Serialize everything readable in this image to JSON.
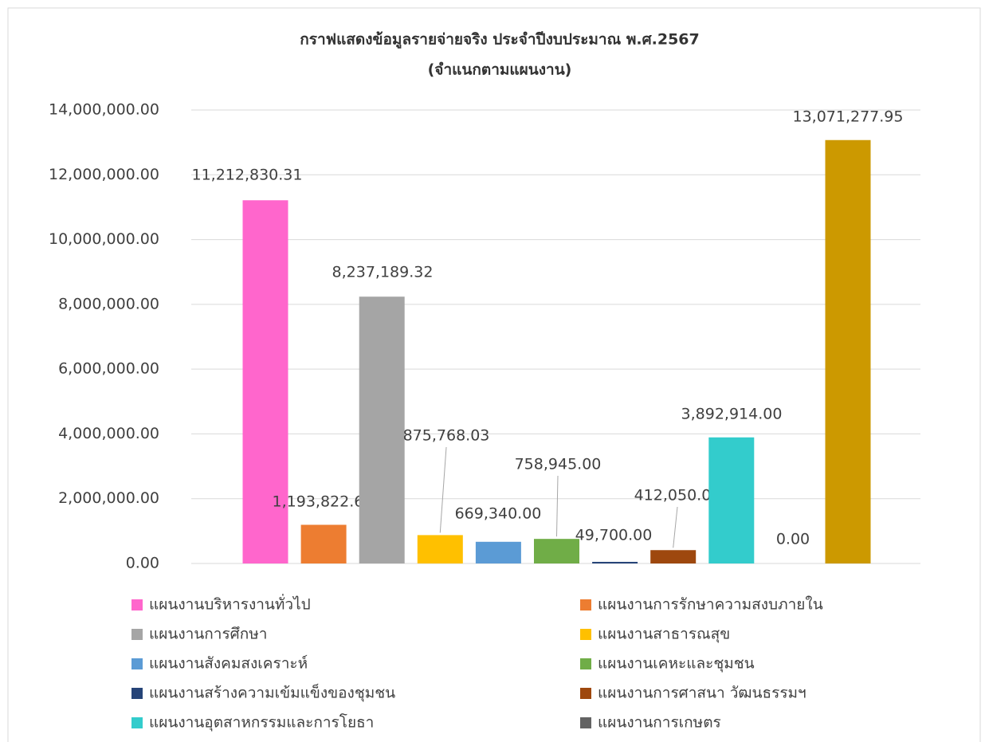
{
  "chart_data": {
    "type": "bar",
    "title": "กราฟแสดงข้อมูลรายจ่ายจริง ประจำปีงบประมาณ พ.ศ.2567",
    "subtitle": "(จำแนกตามแผนงาน)",
    "series": [
      {
        "name": "แผนงานบริหารงานทั่วไป",
        "color": "#ff66cc",
        "values": [
          11212830.31
        ],
        "value_labels": [
          "11,212,830.31"
        ]
      },
      {
        "name": "แผนงานการรักษาความสงบภายใน",
        "color": "#ed7d31",
        "values": [
          1193822.66
        ],
        "value_labels": [
          "1,193,822.66"
        ]
      },
      {
        "name": "แผนงานการศึกษา",
        "color": "#a5a5a5",
        "values": [
          8237189.32
        ],
        "value_labels": [
          "8,237,189.32"
        ]
      },
      {
        "name": "แผนงานสาธารณสุข",
        "color": "#ffc000",
        "values": [
          875768.03
        ],
        "value_labels": [
          "875,768.03"
        ]
      },
      {
        "name": "แผนงานสังคมสงเคราะห์",
        "color": "#5b9bd5",
        "values": [
          669340
        ],
        "value_labels": [
          "669,340.00"
        ]
      },
      {
        "name": "แผนงานเคหะและชุมชน",
        "color": "#70ad47",
        "values": [
          758945
        ],
        "value_labels": [
          "758,945.00"
        ]
      },
      {
        "name": "แผนงานสร้างความเข้มแข็งของชุมชน",
        "color": "#264478",
        "values": [
          49700
        ],
        "value_labels": [
          "49,700.00"
        ]
      },
      {
        "name": "แผนงานการศาสนา วัฒนธรรมฯ",
        "color": "#9e480e",
        "values": [
          412050
        ],
        "value_labels": [
          "412,050.00"
        ]
      },
      {
        "name": "แผนงานอุตสาหกรรมและการโยธา",
        "color": "#33cccc",
        "values": [
          3892914
        ],
        "value_labels": [
          "3,892,914.00"
        ]
      },
      {
        "name": "แผนงานการเกษตร",
        "color": "#636363",
        "values": [
          0
        ],
        "value_labels": [
          "0.00"
        ]
      },
      {
        "color": "#cc9900",
        "values": [
          13071277.95
        ],
        "value_labels": [
          "13,071,277.95"
        ]
      }
    ],
    "ylim": [
      0,
      14000000
    ],
    "yticks": [
      {
        "value": 0,
        "label": "0.00"
      },
      {
        "value": 2000000,
        "label": "2,000,000.00"
      },
      {
        "value": 4000000,
        "label": "4,000,000.00"
      },
      {
        "value": 6000000,
        "label": "6,000,000.00"
      },
      {
        "value": 8000000,
        "label": "8,000,000.00"
      },
      {
        "value": 10000000,
        "label": "10,000,000.00"
      },
      {
        "value": 12000000,
        "label": "12,000,000.00"
      },
      {
        "value": 14000000,
        "label": "14,000,000.00"
      }
    ],
    "grid": true,
    "legend": "bottom"
  }
}
